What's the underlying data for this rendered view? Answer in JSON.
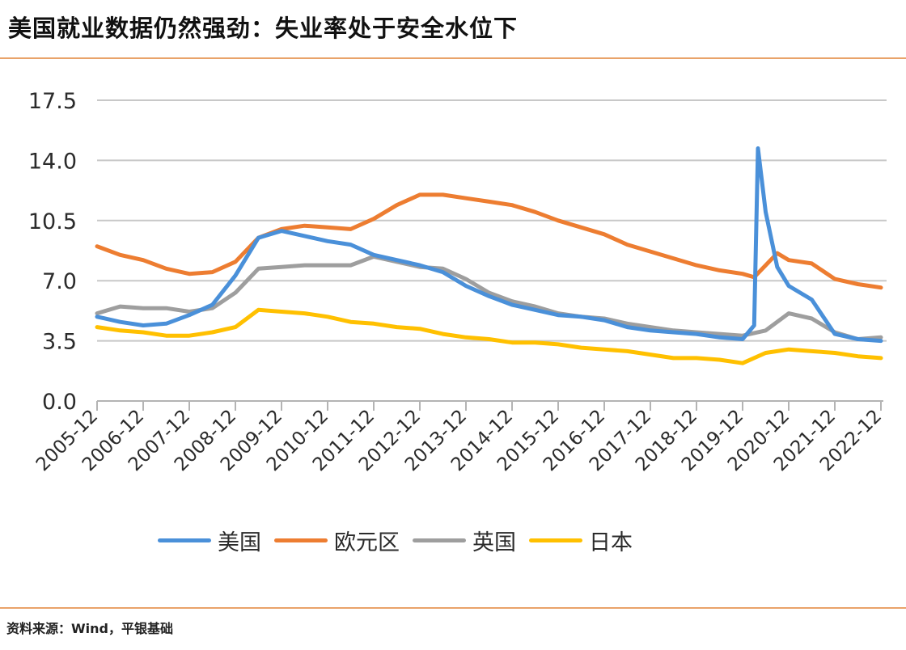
{
  "title": "美国就业数据仍然强劲：失业率处于安全水位下",
  "source": "资料来源：Wind，平银基础",
  "chart_data": {
    "type": "line",
    "title": "美国就业数据仍然强劲：失业率处于安全水位下",
    "xlabel": "",
    "ylabel": "",
    "ylim": [
      0,
      17.5
    ],
    "yticks": [
      "0.0",
      "3.5",
      "7.0",
      "10.5",
      "14.0",
      "17.5"
    ],
    "xticks": [
      "2005-12",
      "2006-12",
      "2007-12",
      "2008-12",
      "2009-12",
      "2010-12",
      "2011-12",
      "2012-12",
      "2013-12",
      "2014-12",
      "2015-12",
      "2016-12",
      "2017-12",
      "2018-12",
      "2019-12",
      "2020-12",
      "2021-12",
      "2022-12"
    ],
    "grid": true,
    "legend_position": "bottom",
    "series": [
      {
        "name": "美国",
        "color": "#4a90d9",
        "points": [
          [
            "2005-12",
            4.9
          ],
          [
            "2006-06",
            4.6
          ],
          [
            "2006-12",
            4.4
          ],
          [
            "2007-06",
            4.5
          ],
          [
            "2007-12",
            5.0
          ],
          [
            "2008-06",
            5.6
          ],
          [
            "2008-12",
            7.3
          ],
          [
            "2009-06",
            9.5
          ],
          [
            "2009-12",
            9.9
          ],
          [
            "2010-06",
            9.6
          ],
          [
            "2010-12",
            9.3
          ],
          [
            "2011-06",
            9.1
          ],
          [
            "2011-12",
            8.5
          ],
          [
            "2012-06",
            8.2
          ],
          [
            "2012-12",
            7.9
          ],
          [
            "2013-06",
            7.5
          ],
          [
            "2013-12",
            6.7
          ],
          [
            "2014-06",
            6.1
          ],
          [
            "2014-12",
            5.6
          ],
          [
            "2015-06",
            5.3
          ],
          [
            "2015-12",
            5.0
          ],
          [
            "2016-06",
            4.9
          ],
          [
            "2016-12",
            4.7
          ],
          [
            "2017-06",
            4.3
          ],
          [
            "2017-12",
            4.1
          ],
          [
            "2018-06",
            4.0
          ],
          [
            "2018-12",
            3.9
          ],
          [
            "2019-06",
            3.7
          ],
          [
            "2019-12",
            3.6
          ],
          [
            "2020-03",
            4.4
          ],
          [
            "2020-04",
            14.7
          ],
          [
            "2020-06",
            11.0
          ],
          [
            "2020-09",
            7.8
          ],
          [
            "2020-12",
            6.7
          ],
          [
            "2021-06",
            5.9
          ],
          [
            "2021-12",
            3.9
          ],
          [
            "2022-06",
            3.6
          ],
          [
            "2022-12",
            3.5
          ]
        ]
      },
      {
        "name": "欧元区",
        "color": "#ed7d31",
        "points": [
          [
            "2005-12",
            9.0
          ],
          [
            "2006-06",
            8.5
          ],
          [
            "2006-12",
            8.2
          ],
          [
            "2007-06",
            7.7
          ],
          [
            "2007-12",
            7.4
          ],
          [
            "2008-06",
            7.5
          ],
          [
            "2008-12",
            8.1
          ],
          [
            "2009-06",
            9.5
          ],
          [
            "2009-12",
            10.0
          ],
          [
            "2010-06",
            10.2
          ],
          [
            "2010-12",
            10.1
          ],
          [
            "2011-06",
            10.0
          ],
          [
            "2011-12",
            10.6
          ],
          [
            "2012-06",
            11.4
          ],
          [
            "2012-12",
            12.0
          ],
          [
            "2013-06",
            12.0
          ],
          [
            "2013-12",
            11.8
          ],
          [
            "2014-06",
            11.6
          ],
          [
            "2014-12",
            11.4
          ],
          [
            "2015-06",
            11.0
          ],
          [
            "2015-12",
            10.5
          ],
          [
            "2016-06",
            10.1
          ],
          [
            "2016-12",
            9.7
          ],
          [
            "2017-06",
            9.1
          ],
          [
            "2017-12",
            8.7
          ],
          [
            "2018-06",
            8.3
          ],
          [
            "2018-12",
            7.9
          ],
          [
            "2019-06",
            7.6
          ],
          [
            "2019-12",
            7.4
          ],
          [
            "2020-03",
            7.2
          ],
          [
            "2020-06",
            7.9
          ],
          [
            "2020-09",
            8.6
          ],
          [
            "2020-12",
            8.2
          ],
          [
            "2021-06",
            8.0
          ],
          [
            "2021-12",
            7.1
          ],
          [
            "2022-06",
            6.8
          ],
          [
            "2022-12",
            6.6
          ]
        ]
      },
      {
        "name": "英国",
        "color": "#9e9e9e",
        "points": [
          [
            "2005-12",
            5.1
          ],
          [
            "2006-06",
            5.5
          ],
          [
            "2006-12",
            5.4
          ],
          [
            "2007-06",
            5.4
          ],
          [
            "2007-12",
            5.2
          ],
          [
            "2008-06",
            5.4
          ],
          [
            "2008-12",
            6.3
          ],
          [
            "2009-06",
            7.7
          ],
          [
            "2009-12",
            7.8
          ],
          [
            "2010-06",
            7.9
          ],
          [
            "2010-12",
            7.9
          ],
          [
            "2011-06",
            7.9
          ],
          [
            "2011-12",
            8.4
          ],
          [
            "2012-06",
            8.1
          ],
          [
            "2012-12",
            7.8
          ],
          [
            "2013-06",
            7.7
          ],
          [
            "2013-12",
            7.1
          ],
          [
            "2014-06",
            6.3
          ],
          [
            "2014-12",
            5.8
          ],
          [
            "2015-06",
            5.5
          ],
          [
            "2015-12",
            5.1
          ],
          [
            "2016-06",
            4.9
          ],
          [
            "2016-12",
            4.8
          ],
          [
            "2017-06",
            4.5
          ],
          [
            "2017-12",
            4.3
          ],
          [
            "2018-06",
            4.1
          ],
          [
            "2018-12",
            4.0
          ],
          [
            "2019-06",
            3.9
          ],
          [
            "2019-12",
            3.8
          ],
          [
            "2020-06",
            4.1
          ],
          [
            "2020-12",
            5.1
          ],
          [
            "2021-06",
            4.8
          ],
          [
            "2021-12",
            4.0
          ],
          [
            "2022-06",
            3.6
          ],
          [
            "2022-12",
            3.7
          ]
        ]
      },
      {
        "name": "日本",
        "color": "#ffc000",
        "points": [
          [
            "2005-12",
            4.3
          ],
          [
            "2006-06",
            4.1
          ],
          [
            "2006-12",
            4.0
          ],
          [
            "2007-06",
            3.8
          ],
          [
            "2007-12",
            3.8
          ],
          [
            "2008-06",
            4.0
          ],
          [
            "2008-12",
            4.3
          ],
          [
            "2009-06",
            5.3
          ],
          [
            "2009-12",
            5.2
          ],
          [
            "2010-06",
            5.1
          ],
          [
            "2010-12",
            4.9
          ],
          [
            "2011-06",
            4.6
          ],
          [
            "2011-12",
            4.5
          ],
          [
            "2012-06",
            4.3
          ],
          [
            "2012-12",
            4.2
          ],
          [
            "2013-06",
            3.9
          ],
          [
            "2013-12",
            3.7
          ],
          [
            "2014-06",
            3.6
          ],
          [
            "2014-12",
            3.4
          ],
          [
            "2015-06",
            3.4
          ],
          [
            "2015-12",
            3.3
          ],
          [
            "2016-06",
            3.1
          ],
          [
            "2016-12",
            3.0
          ],
          [
            "2017-06",
            2.9
          ],
          [
            "2017-12",
            2.7
          ],
          [
            "2018-06",
            2.5
          ],
          [
            "2018-12",
            2.5
          ],
          [
            "2019-06",
            2.4
          ],
          [
            "2019-12",
            2.2
          ],
          [
            "2020-06",
            2.8
          ],
          [
            "2020-12",
            3.0
          ],
          [
            "2021-06",
            2.9
          ],
          [
            "2021-12",
            2.8
          ],
          [
            "2022-06",
            2.6
          ],
          [
            "2022-12",
            2.5
          ]
        ]
      }
    ]
  },
  "legend": {
    "items": [
      {
        "label": "美国",
        "color": "#4a90d9"
      },
      {
        "label": "欧元区",
        "color": "#ed7d31"
      },
      {
        "label": "英国",
        "color": "#9e9e9e"
      },
      {
        "label": "日本",
        "color": "#ffc000"
      }
    ]
  },
  "colors": {
    "rule": "#e9a36a",
    "grid": "#c8c8c8",
    "axis": "#b4b4b4"
  }
}
